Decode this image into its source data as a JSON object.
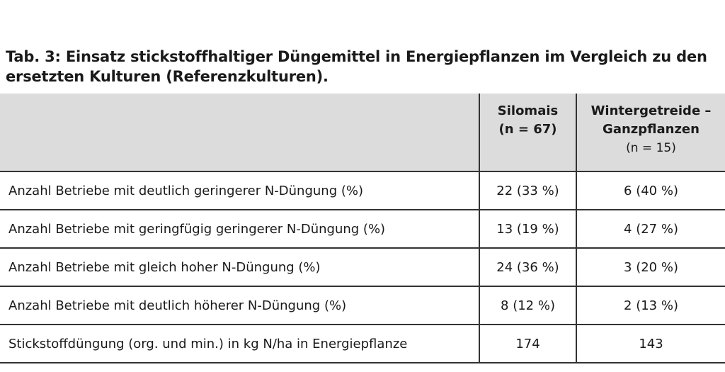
{
  "caption": "Tab. 3: Einsatz stickstoffhaltiger Düngemittel in Energiepflanzen im Vergleich zu den ersetzten Kulturen (Referenzkulturen).",
  "table": {
    "header": {
      "col1": "",
      "col2_line1": "Silomais",
      "col2_line2": "(n = 67)",
      "col3_line1": "Wintergetreide –",
      "col3_line2": "Ganzpflanzen",
      "col3_line3": "(n = 15)"
    },
    "rows": [
      {
        "label": "Anzahl Betriebe mit deutlich geringerer N-Düngung (%)",
        "silomais": "22 (33 %)",
        "wintergetreide": "6 (40 %)"
      },
      {
        "label": "Anzahl Betriebe mit geringfügig geringerer N-Düngung (%)",
        "silomais": "13 (19 %)",
        "wintergetreide": "4 (27 %)"
      },
      {
        "label": "Anzahl Betriebe mit gleich hoher N-Düngung (%)",
        "silomais": "24 (36 %)",
        "wintergetreide": "3 (20 %)"
      },
      {
        "label": "Anzahl Betriebe mit deutlich höherer N-Düngung (%)",
        "silomais": "8 (12 %)",
        "wintergetreide": "2 (13 %)"
      },
      {
        "label": "Stickstoffdüngung (org. und min.) in kg N/ha in Energiepflanze",
        "silomais": "174",
        "wintergetreide": "143"
      }
    ]
  }
}
